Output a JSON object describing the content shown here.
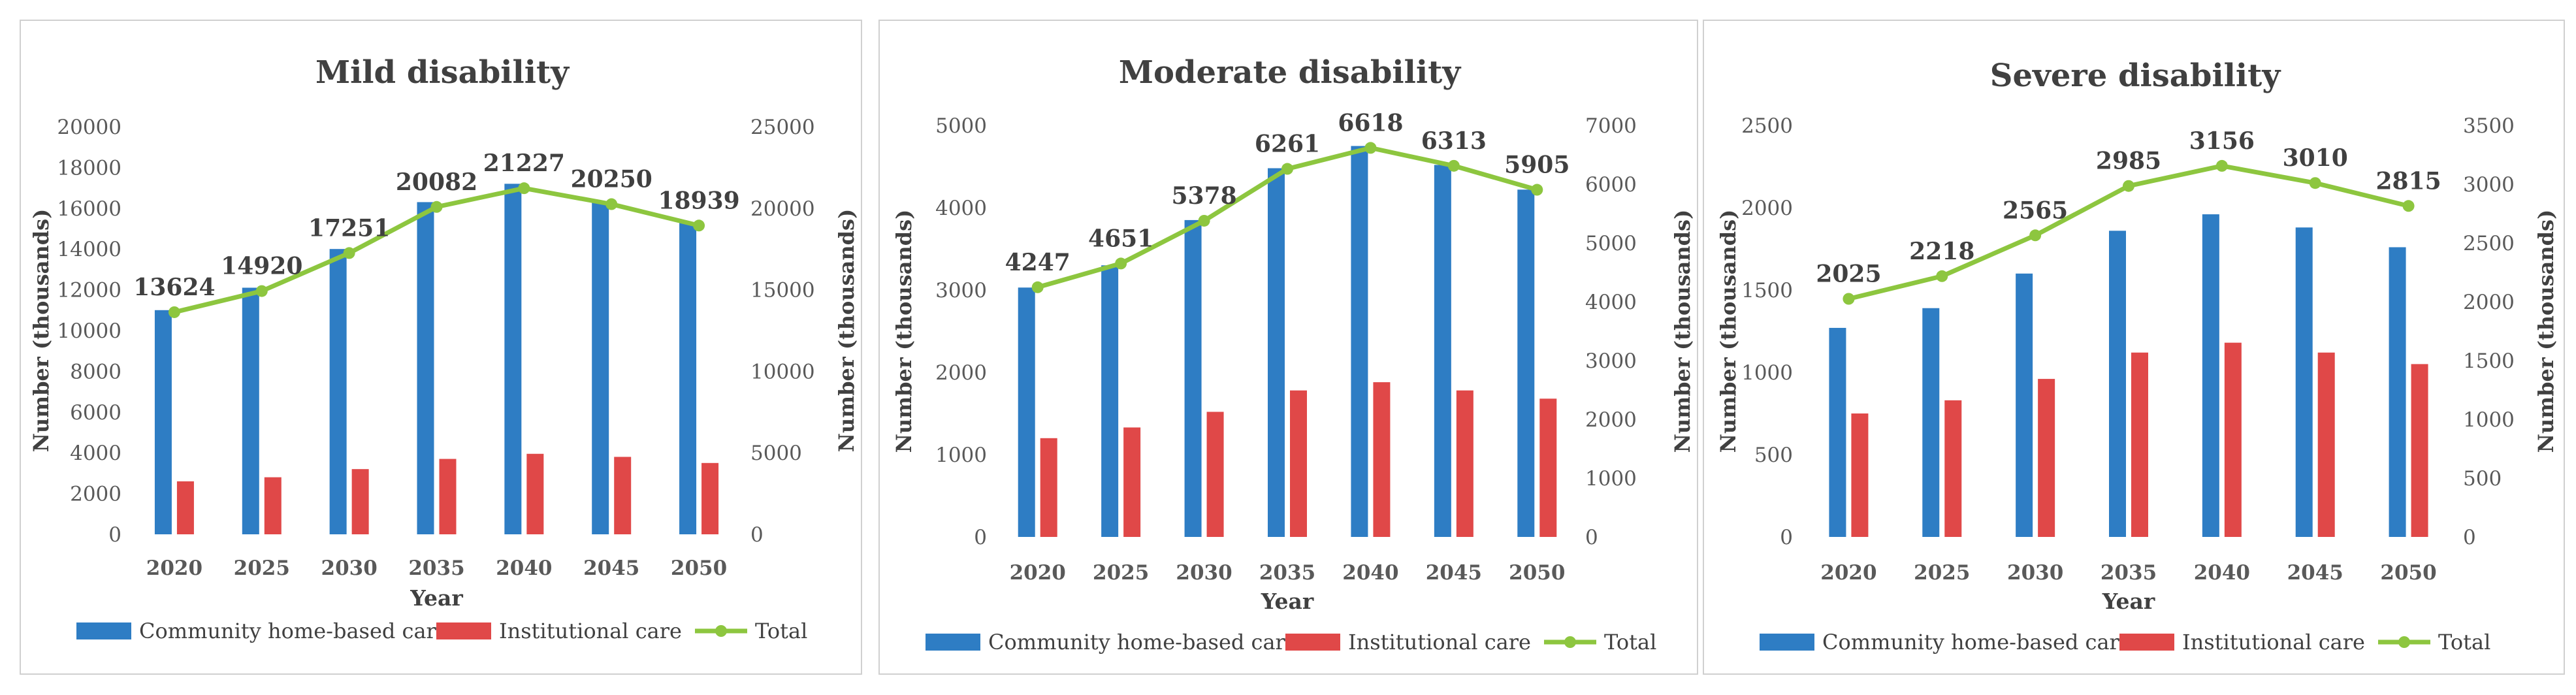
{
  "colors": {
    "community": "#2E7DC4",
    "institutional": "#E04848",
    "total": "#8DC63F"
  },
  "chart_data": [
    {
      "type": "bar",
      "title": "Mild disability",
      "categories": [
        "2020",
        "2025",
        "2030",
        "2035",
        "2040",
        "2045",
        "2050"
      ],
      "xlabel": "Year",
      "ylabel": "Number (thousands)",
      "ylabel_right": "Number (thousands)",
      "ylim": [
        0,
        20000
      ],
      "yticks": [
        "0",
        "2000",
        "4000",
        "6000",
        "8000",
        "10000",
        "12000",
        "14000",
        "16000",
        "18000",
        "20000"
      ],
      "y2lim": [
        0,
        25000
      ],
      "y2ticks": [
        "0",
        "5000",
        "10000",
        "15000",
        "20000",
        "25000"
      ],
      "series": [
        {
          "name": "Community home-based  care",
          "values": [
            11000,
            12100,
            14000,
            16300,
            17200,
            16300,
            15300
          ],
          "axis": "left"
        },
        {
          "name": "Institutional care",
          "values": [
            2600,
            2800,
            3200,
            3700,
            3950,
            3800,
            3500
          ],
          "axis": "left"
        },
        {
          "name": "Total",
          "type": "line",
          "values": [
            13624,
            14920,
            17251,
            20082,
            21227,
            20250,
            18939
          ],
          "axis": "right",
          "labels": [
            "13624",
            "14920",
            "17251",
            "20082",
            "21227",
            "20250",
            "18939"
          ]
        }
      ],
      "legend_position": "bottom"
    },
    {
      "type": "bar",
      "title": "Moderate disability",
      "categories": [
        "2020",
        "2025",
        "2030",
        "2035",
        "2040",
        "2045",
        "2050"
      ],
      "xlabel": "Year",
      "ylabel": "Number (thousands)",
      "ylabel_right": "Number (thousands)",
      "ylim": [
        0,
        5000
      ],
      "yticks": [
        "0",
        "1000",
        "2000",
        "3000",
        "4000",
        "5000"
      ],
      "y2lim": [
        0,
        7000
      ],
      "y2ticks": [
        "0",
        "1000",
        "2000",
        "3000",
        "4000",
        "5000",
        "6000",
        "7000"
      ],
      "series": [
        {
          "name": "Community home-based  care",
          "values": [
            3030,
            3300,
            3850,
            4480,
            4750,
            4520,
            4220
          ],
          "axis": "left"
        },
        {
          "name": "Institutional care",
          "values": [
            1200,
            1330,
            1520,
            1780,
            1880,
            1780,
            1680
          ],
          "axis": "left"
        },
        {
          "name": "Total",
          "type": "line",
          "values": [
            4247,
            4651,
            5378,
            6261,
            6618,
            6313,
            5905
          ],
          "axis": "right",
          "labels": [
            "4247",
            "4651",
            "5378",
            "6261",
            "6618",
            "6313",
            "5905"
          ]
        }
      ],
      "legend_position": "bottom"
    },
    {
      "type": "bar",
      "title": "Severe disability",
      "categories": [
        "2020",
        "2025",
        "2030",
        "2035",
        "2040",
        "2045",
        "2050"
      ],
      "xlabel": "Year",
      "ylabel": "Number (thousands)",
      "ylabel_right": "Number (thousands)",
      "ylim": [
        0,
        2500
      ],
      "yticks": [
        "0",
        "500",
        "1000",
        "1500",
        "2000",
        "2500"
      ],
      "y2lim": [
        0,
        3500
      ],
      "y2ticks": [
        "0",
        "500",
        "1000",
        "1500",
        "2000",
        "2500",
        "3000",
        "3500"
      ],
      "series": [
        {
          "name": "Community home-based  care",
          "values": [
            1270,
            1390,
            1600,
            1860,
            1960,
            1880,
            1760
          ],
          "axis": "left"
        },
        {
          "name": "Institutional care",
          "values": [
            750,
            830,
            960,
            1120,
            1180,
            1120,
            1050
          ],
          "axis": "left"
        },
        {
          "name": "Total",
          "type": "line",
          "values": [
            2025,
            2218,
            2565,
            2985,
            3156,
            3010,
            2815
          ],
          "axis": "right",
          "labels": [
            "2025",
            "2218",
            "2565",
            "2985",
            "3156",
            "3010",
            "2815"
          ]
        }
      ],
      "legend_position": "bottom"
    }
  ]
}
